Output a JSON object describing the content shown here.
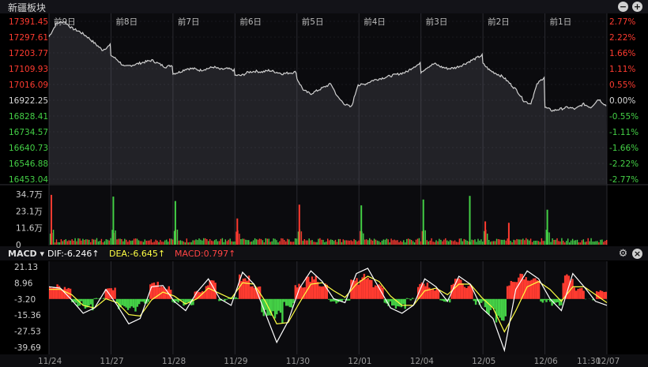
{
  "panel": {
    "title": "新疆板块",
    "minimize_icon": "minus-circle-icon",
    "expand_icon": "plus-circle-icon"
  },
  "macd": {
    "label": "MACD",
    "dif": "DIF:-6.246↑",
    "dea": "DEA:-6.645↑",
    "macd": "MACD:0.797↑",
    "dif_color": "#ffffff",
    "dea_color": "#ffff44",
    "macd_color": "#ff4444",
    "settings_icon": "gear-icon",
    "close_icon": "close-icon"
  },
  "colors": {
    "up": "#ff3b30",
    "down": "#44d046",
    "flat": "#d8d8d8",
    "price_line": "#d0d0d0",
    "grid": "#2a2a30"
  },
  "chart_data": [
    {
      "type": "line",
      "name": "price",
      "y_ticks": [
        "17391.45",
        "17297.61",
        "17203.77",
        "17109.93",
        "17016.09",
        "16922.25",
        "16828.41",
        "16734.57",
        "16640.73",
        "16546.88",
        "16453.04"
      ],
      "pct_ticks": [
        "2.77%",
        "2.22%",
        "1.66%",
        "1.11%",
        "0.55%",
        "0.00%",
        "-0.55%",
        "-1.11%",
        "-1.66%",
        "-2.22%",
        "-2.77%"
      ],
      "ylim": [
        16453.04,
        17391.45
      ],
      "base": 16922.25,
      "day_labels": [
        "前9日",
        "前8日",
        "前7日",
        "前6日",
        "前5日",
        "前4日",
        "前3日",
        "前2日",
        "前1日"
      ],
      "segments": [
        [
          17300,
          17380,
          17390,
          17350,
          17330,
          17300,
          17260,
          17220,
          17250
        ],
        [
          17190,
          17160,
          17120,
          17130,
          17140,
          17150,
          17160,
          17140,
          17120,
          17130
        ],
        [
          17080,
          17090,
          17110,
          17110,
          17100,
          17110,
          17120,
          17105,
          17110,
          17100
        ],
        [
          17070,
          17070,
          17090,
          17095,
          17090,
          17100,
          17090,
          17080,
          17085,
          17090
        ],
        [
          17050,
          16980,
          16960,
          16980,
          17000,
          17020,
          16940,
          16900,
          16880,
          17020
        ],
        [
          17010,
          17020,
          17040,
          17050,
          17060,
          17070,
          17080,
          17090,
          17120,
          17140
        ],
        [
          17090,
          17120,
          17140,
          17120,
          17110,
          17115,
          17130,
          17150,
          17170,
          17190
        ],
        [
          17140,
          17100,
          17080,
          17060,
          17020,
          16980,
          16920,
          16900,
          17020,
          17060
        ],
        [
          16880,
          16860,
          16870,
          16880,
          16870,
          16900,
          16880,
          16930,
          16890
        ]
      ]
    },
    {
      "type": "bar",
      "name": "volume",
      "y_ticks": [
        "34.7万",
        "23.1万",
        "11.6万",
        "0"
      ],
      "ylim": [
        0,
        34.7
      ],
      "unit": "万",
      "spikes": [
        34.2,
        33.0,
        30.0,
        18.0,
        27.5,
        27.0,
        31.0,
        16.0,
        24.0,
        33.5,
        15.0
      ],
      "spike_dirs": [
        "up",
        "down",
        "down",
        "up",
        "up",
        "down",
        "down",
        "up",
        "down",
        "down",
        "up"
      ]
    },
    {
      "type": "bar",
      "name": "macd",
      "y_ticks": [
        "21.13",
        "8.96",
        "-3.20",
        "-15.36",
        "-27.53",
        "-39.69"
      ],
      "ylim": [
        -39.69,
        21.13
      ],
      "x_labels": [
        "11/24",
        "11/27",
        "11/28",
        "11/29",
        "11/30",
        "12/01",
        "12/04",
        "12/05",
        "12/06",
        "12/07",
        "11:30"
      ],
      "macd_bars": [
        8,
        6,
        -8,
        -12,
        -4,
        5,
        -10,
        -14,
        -7,
        9,
        6,
        -6,
        -8,
        3,
        10,
        -5,
        -3,
        14,
        6,
        -15,
        -20,
        -9,
        8,
        14,
        10,
        -6,
        -5,
        12,
        15,
        8,
        -8,
        -10,
        -4,
        9,
        5,
        -6,
        12,
        8,
        -7,
        -14,
        -20,
        10,
        16,
        12,
        -6,
        -8,
        14,
        5,
        -4,
        3
      ],
      "dif_series": [
        6,
        5,
        -4,
        -14,
        -10,
        4,
        -8,
        -22,
        -18,
        6,
        7,
        -5,
        -12,
        2,
        12,
        -3,
        -8,
        17,
        8,
        -14,
        -36,
        -20,
        5,
        18,
        10,
        -3,
        -6,
        16,
        20,
        5,
        -10,
        -14,
        -8,
        12,
        6,
        -5,
        14,
        8,
        -10,
        -18,
        -42,
        4,
        18,
        12,
        -3,
        -12,
        16,
        6,
        -5,
        -8
      ],
      "dea_series": [
        4,
        4,
        0,
        -8,
        -10,
        -3,
        -6,
        -15,
        -16,
        -4,
        2,
        -1,
        -7,
        -3,
        5,
        1,
        -3,
        9,
        8,
        -5,
        -22,
        -21,
        -6,
        8,
        9,
        3,
        -2,
        8,
        14,
        10,
        -1,
        -8,
        -8,
        3,
        5,
        0,
        8,
        8,
        -2,
        -10,
        -28,
        -12,
        6,
        10,
        4,
        -5,
        6,
        6,
        0,
        -6
      ]
    }
  ]
}
